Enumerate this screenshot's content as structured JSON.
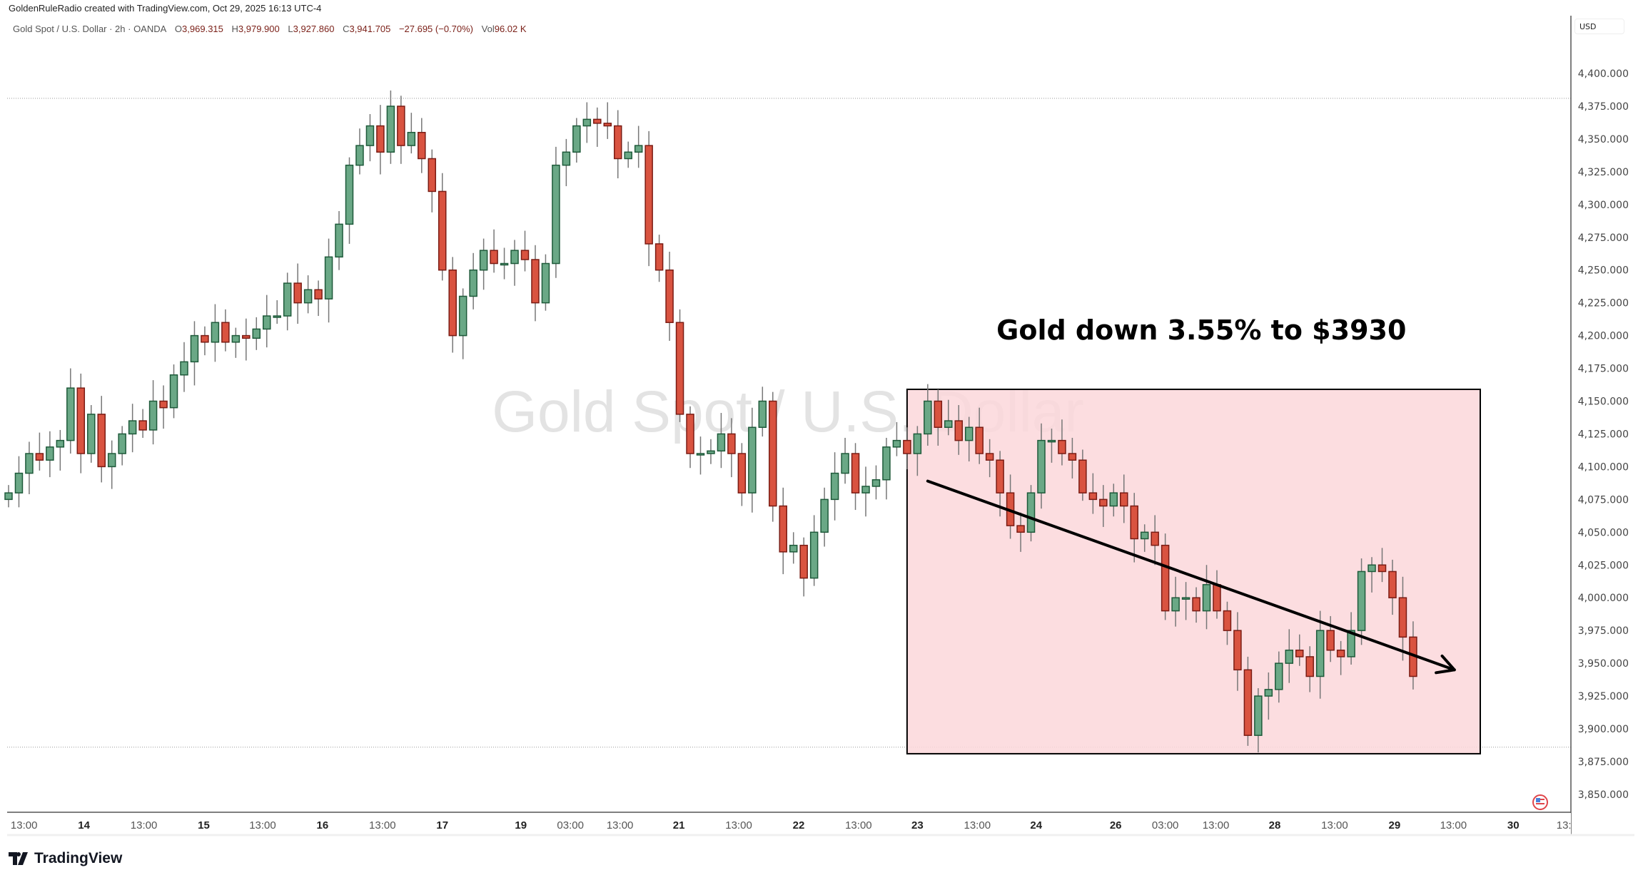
{
  "header": {
    "credit": "GoldenRuleRadio created with TradingView.com, Oct 29, 2025 16:13 UTC-4",
    "symbol": "Gold Spot / U.S. Dollar · 2h · OANDA",
    "open_label": "O",
    "open": "3,969.315",
    "high_label": "H",
    "high": "3,979.900",
    "low_label": "L",
    "low": "3,927.860",
    "close_label": "C",
    "close": "3,941.705",
    "change": "−27.695 (−0.70%)",
    "vol_label": "Vol",
    "vol": "96.02 K"
  },
  "currency": "USD",
  "watermark": "Gold Spot / U.S. Dollar",
  "brand": "TradingView",
  "colors": {
    "up": "#6aa886",
    "up_border": "#1e5a3a",
    "down": "#d95340",
    "down_border": "#7a1c14",
    "wick": "#777777",
    "box": "#fbd7db"
  },
  "chart_data": {
    "type": "candlestick",
    "title": "Gold Spot / U.S. Dollar · 2h · OANDA",
    "ylim": [
      3835,
      4430
    ],
    "y_ticks": [
      4400,
      4375,
      4350,
      4325,
      4300,
      4275,
      4250,
      4225,
      4200,
      4175,
      4150,
      4125,
      4100,
      4075,
      4050,
      4025,
      4000,
      3975,
      3950,
      3925,
      3900,
      3875,
      3850
    ],
    "y_tick_labels": [
      "4,400.000",
      "4,375.000",
      "4,350.000",
      "4,325.000",
      "4,300.000",
      "4,275.000",
      "4,250.000",
      "4,225.000",
      "4,200.000",
      "4,175.000",
      "4,150.000",
      "4,125.000",
      "4,100.000",
      "4,075.000",
      "4,050.000",
      "4,025.000",
      "4,000.000",
      "3,975.000",
      "3,950.000",
      "3,925.000",
      "3,900.000",
      "3,875.000",
      "3,850.000"
    ],
    "first_open": 4075,
    "closes": [
      4080,
      4095,
      4110,
      4105,
      4115,
      4120,
      4160,
      4110,
      4140,
      4100,
      4110,
      4125,
      4135,
      4128,
      4150,
      4145,
      4170,
      4180,
      4200,
      4195,
      4210,
      4195,
      4200,
      4198,
      4205,
      4215,
      4215,
      4240,
      4225,
      4235,
      4228,
      4260,
      4285,
      4330,
      4345,
      4360,
      4340,
      4375,
      4345,
      4355,
      4335,
      4310,
      4250,
      4200,
      4230,
      4250,
      4265,
      4255,
      4255,
      4265,
      4258,
      4225,
      4255,
      4330,
      4340,
      4360,
      4365,
      4362,
      4360,
      4335,
      4340,
      4345,
      4270,
      4250,
      4210,
      4140,
      4110,
      4110,
      4112,
      4125,
      4110,
      4080,
      4130,
      4150,
      4070,
      4035,
      4040,
      4015,
      4050,
      4075,
      4095,
      4110,
      4080,
      4085,
      4090,
      4115,
      4120,
      4110,
      4125,
      4150,
      4130,
      4135,
      4120,
      4130,
      4110,
      4105,
      4080,
      4055,
      4050,
      4080,
      4120,
      4120,
      4110,
      4105,
      4080,
      4075,
      4070,
      4080,
      4070,
      4045,
      4050,
      4040,
      3990,
      4000,
      4000,
      3990,
      4010,
      3990,
      3975,
      3945,
      3895,
      3925,
      3930,
      3950,
      3960,
      3955,
      3940,
      3975,
      3960,
      3955,
      3975,
      4020,
      4025,
      4020,
      4000,
      3970,
      3940
    ],
    "x_ticks": [
      {
        "label": "13:00",
        "candle": 1.5,
        "bold": false
      },
      {
        "label": "14",
        "candle": 7.3,
        "bold": true
      },
      {
        "label": "13:00",
        "candle": 13.1,
        "bold": false
      },
      {
        "label": "15",
        "candle": 18.9,
        "bold": true
      },
      {
        "label": "13:00",
        "candle": 24.6,
        "bold": false
      },
      {
        "label": "16",
        "candle": 30.4,
        "bold": true
      },
      {
        "label": "13:00",
        "candle": 36.2,
        "bold": false
      },
      {
        "label": "17",
        "candle": 42,
        "bold": true
      },
      {
        "label": "19",
        "candle": 49.6,
        "bold": true
      },
      {
        "label": "03:00",
        "candle": 54.4,
        "bold": false
      },
      {
        "label": "13:00",
        "candle": 59.2,
        "bold": false
      },
      {
        "label": "21",
        "candle": 64.9,
        "bold": true
      },
      {
        "label": "13:00",
        "candle": 70.7,
        "bold": false
      },
      {
        "label": "22",
        "candle": 76.5,
        "bold": true
      },
      {
        "label": "13:00",
        "candle": 82.3,
        "bold": false
      },
      {
        "label": "23",
        "candle": 88,
        "bold": true
      },
      {
        "label": "13:00",
        "candle": 93.8,
        "bold": false
      },
      {
        "label": "24",
        "candle": 99.5,
        "bold": true
      },
      {
        "label": "26",
        "candle": 107.2,
        "bold": true
      },
      {
        "label": "03:00",
        "candle": 112,
        "bold": false
      },
      {
        "label": "13:00",
        "candle": 116.9,
        "bold": false
      },
      {
        "label": "28",
        "candle": 122.6,
        "bold": true
      },
      {
        "label": "13:00",
        "candle": 128.4,
        "bold": false
      },
      {
        "label": "29",
        "candle": 134.2,
        "bold": true
      },
      {
        "label": "13:00",
        "candle": 139.9,
        "bold": false
      },
      {
        "label": "30",
        "candle": 145.7,
        "bold": true
      },
      {
        "label": "13:",
        "candle": 150.6,
        "bold": false
      }
    ],
    "high_line": 4381,
    "low_line": 3886,
    "annotations": {
      "box": {
        "from_candle": 87,
        "to_candle": 142.5,
        "top": 4159,
        "bottom": 3881
      },
      "arrow": {
        "from_candle": 89,
        "from_price": 4089,
        "to_candle": 140,
        "to_price": 3945
      },
      "text": {
        "label": "Gold down 3.55% to $3930",
        "candle": 115.5,
        "price": 4197
      }
    }
  }
}
